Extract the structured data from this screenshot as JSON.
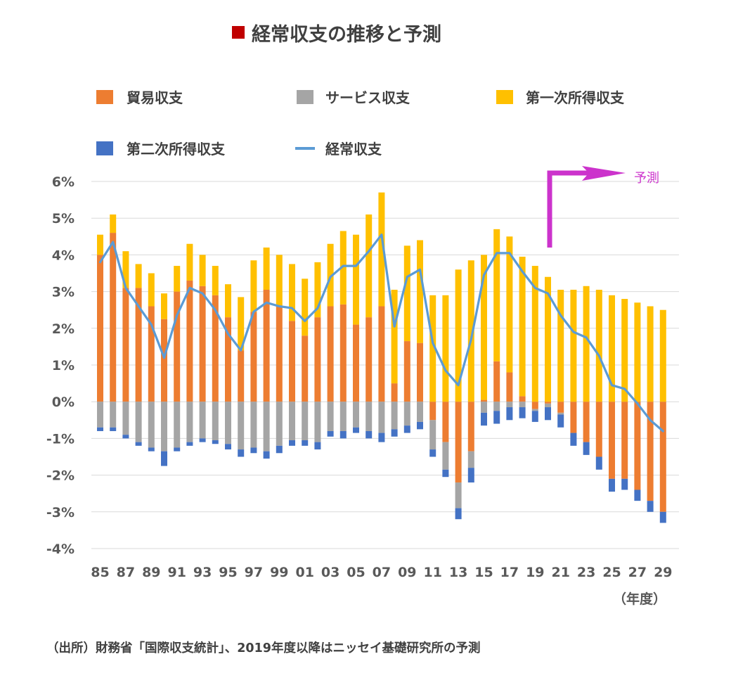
{
  "chart_data": {
    "type": "bar",
    "title": "経常収支の推移と予測",
    "title_marker_color": "#c00000",
    "unit_label": "（年度）",
    "source_note": "（出所）財務省「国際収支統計」、2019年度以降はニッセイ基礎研究所の予測",
    "forecast_label": "予測",
    "forecast_color": "#cc33cc",
    "ylim": [
      -4,
      6
    ],
    "y_ticks": [
      {
        "value": 6,
        "label": "6%"
      },
      {
        "value": 5,
        "label": "5%"
      },
      {
        "value": 4,
        "label": "4%"
      },
      {
        "value": 3,
        "label": "3%"
      },
      {
        "value": 2,
        "label": "2%"
      },
      {
        "value": 1,
        "label": "1%"
      },
      {
        "value": 0,
        "label": "0%"
      },
      {
        "value": -1,
        "label": "-1%"
      },
      {
        "value": -2,
        "label": "-2%"
      },
      {
        "value": -3,
        "label": "-3%"
      },
      {
        "value": -4,
        "label": "-4%"
      }
    ],
    "grid": true,
    "legend_position": "top",
    "x_tick_labels": [
      "85",
      "87",
      "89",
      "91",
      "93",
      "95",
      "97",
      "99",
      "01",
      "03",
      "05",
      "07",
      "09",
      "11",
      "13",
      "15",
      "17",
      "19",
      "21",
      "23",
      "25",
      "27",
      "29"
    ],
    "categories": [
      "85",
      "86",
      "87",
      "88",
      "89",
      "90",
      "91",
      "92",
      "93",
      "94",
      "95",
      "96",
      "97",
      "98",
      "99",
      "00",
      "01",
      "02",
      "03",
      "04",
      "05",
      "06",
      "07",
      "08",
      "09",
      "10",
      "11",
      "12",
      "13",
      "14",
      "15",
      "16",
      "17",
      "18",
      "19",
      "20",
      "21",
      "22",
      "23",
      "24",
      "25",
      "26",
      "27",
      "28",
      "29"
    ],
    "series": [
      {
        "name": "貿易収支",
        "kind": "bar",
        "color": "#ed7d31",
        "values": [
          4.0,
          4.6,
          3.1,
          3.1,
          2.6,
          2.25,
          3.0,
          3.3,
          3.15,
          2.9,
          2.3,
          1.4,
          2.45,
          3.05,
          2.6,
          2.2,
          1.8,
          2.3,
          2.6,
          2.65,
          2.1,
          2.3,
          2.6,
          0.5,
          1.65,
          1.6,
          -0.5,
          -1.1,
          -2.2,
          -1.35,
          0.05,
          1.1,
          0.8,
          0.15,
          -0.2,
          -0.05,
          -0.3,
          -0.85,
          -1.1,
          -1.5,
          -2.1,
          -2.1,
          -2.4,
          -2.7,
          -3.0
        ]
      },
      {
        "name": "サービス収支",
        "kind": "bar",
        "color": "#a5a5a5",
        "values": [
          -0.7,
          -0.7,
          -0.9,
          -1.1,
          -1.25,
          -1.35,
          -1.25,
          -1.1,
          -1.0,
          -1.05,
          -1.15,
          -1.3,
          -1.25,
          -1.35,
          -1.2,
          -1.05,
          -1.05,
          -1.1,
          -0.8,
          -0.8,
          -0.7,
          -0.8,
          -0.85,
          -0.75,
          -0.65,
          -0.55,
          -0.8,
          -0.75,
          -0.7,
          -0.45,
          -0.3,
          -0.25,
          -0.15,
          -0.15,
          -0.05,
          -0.1,
          -0.05,
          0.0,
          0.0,
          0.0,
          0.0,
          0.0,
          0.0,
          0.0,
          0.0
        ]
      },
      {
        "name": "第一次所得収支",
        "kind": "bar",
        "color": "#ffc000",
        "values": [
          0.55,
          0.5,
          1.0,
          0.65,
          0.9,
          0.7,
          0.7,
          1.0,
          0.85,
          0.8,
          0.9,
          1.45,
          1.4,
          1.15,
          1.4,
          1.55,
          1.55,
          1.5,
          1.7,
          2.0,
          2.45,
          2.8,
          3.1,
          2.55,
          2.6,
          2.8,
          2.9,
          2.9,
          3.6,
          3.85,
          3.95,
          3.6,
          3.7,
          3.8,
          3.7,
          3.4,
          3.05,
          3.05,
          3.15,
          3.05,
          2.9,
          2.8,
          2.7,
          2.6,
          2.5
        ]
      },
      {
        "name": "第二次所得収支",
        "kind": "bar",
        "color": "#4472c4",
        "values": [
          -0.1,
          -0.1,
          -0.1,
          -0.1,
          -0.1,
          -0.4,
          -0.1,
          -0.1,
          -0.1,
          -0.1,
          -0.15,
          -0.2,
          -0.15,
          -0.2,
          -0.2,
          -0.15,
          -0.15,
          -0.2,
          -0.15,
          -0.2,
          -0.15,
          -0.2,
          -0.25,
          -0.2,
          -0.2,
          -0.2,
          -0.2,
          -0.2,
          -0.3,
          -0.4,
          -0.35,
          -0.35,
          -0.35,
          -0.3,
          -0.3,
          -0.35,
          -0.35,
          -0.35,
          -0.35,
          -0.35,
          -0.35,
          -0.3,
          -0.3,
          -0.3,
          -0.3
        ]
      },
      {
        "name": "経常収支",
        "kind": "line",
        "color": "#5b9bd5",
        "values": [
          3.8,
          4.35,
          3.1,
          2.6,
          2.1,
          1.2,
          2.35,
          3.1,
          2.95,
          2.5,
          1.85,
          1.4,
          2.45,
          2.7,
          2.6,
          2.55,
          2.2,
          2.55,
          3.4,
          3.7,
          3.7,
          4.1,
          4.55,
          2.05,
          3.4,
          3.6,
          1.6,
          0.85,
          0.45,
          1.7,
          3.45,
          4.05,
          4.05,
          3.55,
          3.1,
          2.95,
          2.35,
          1.9,
          1.75,
          1.25,
          0.45,
          0.35,
          -0.05,
          -0.5,
          -0.8
        ]
      }
    ]
  }
}
